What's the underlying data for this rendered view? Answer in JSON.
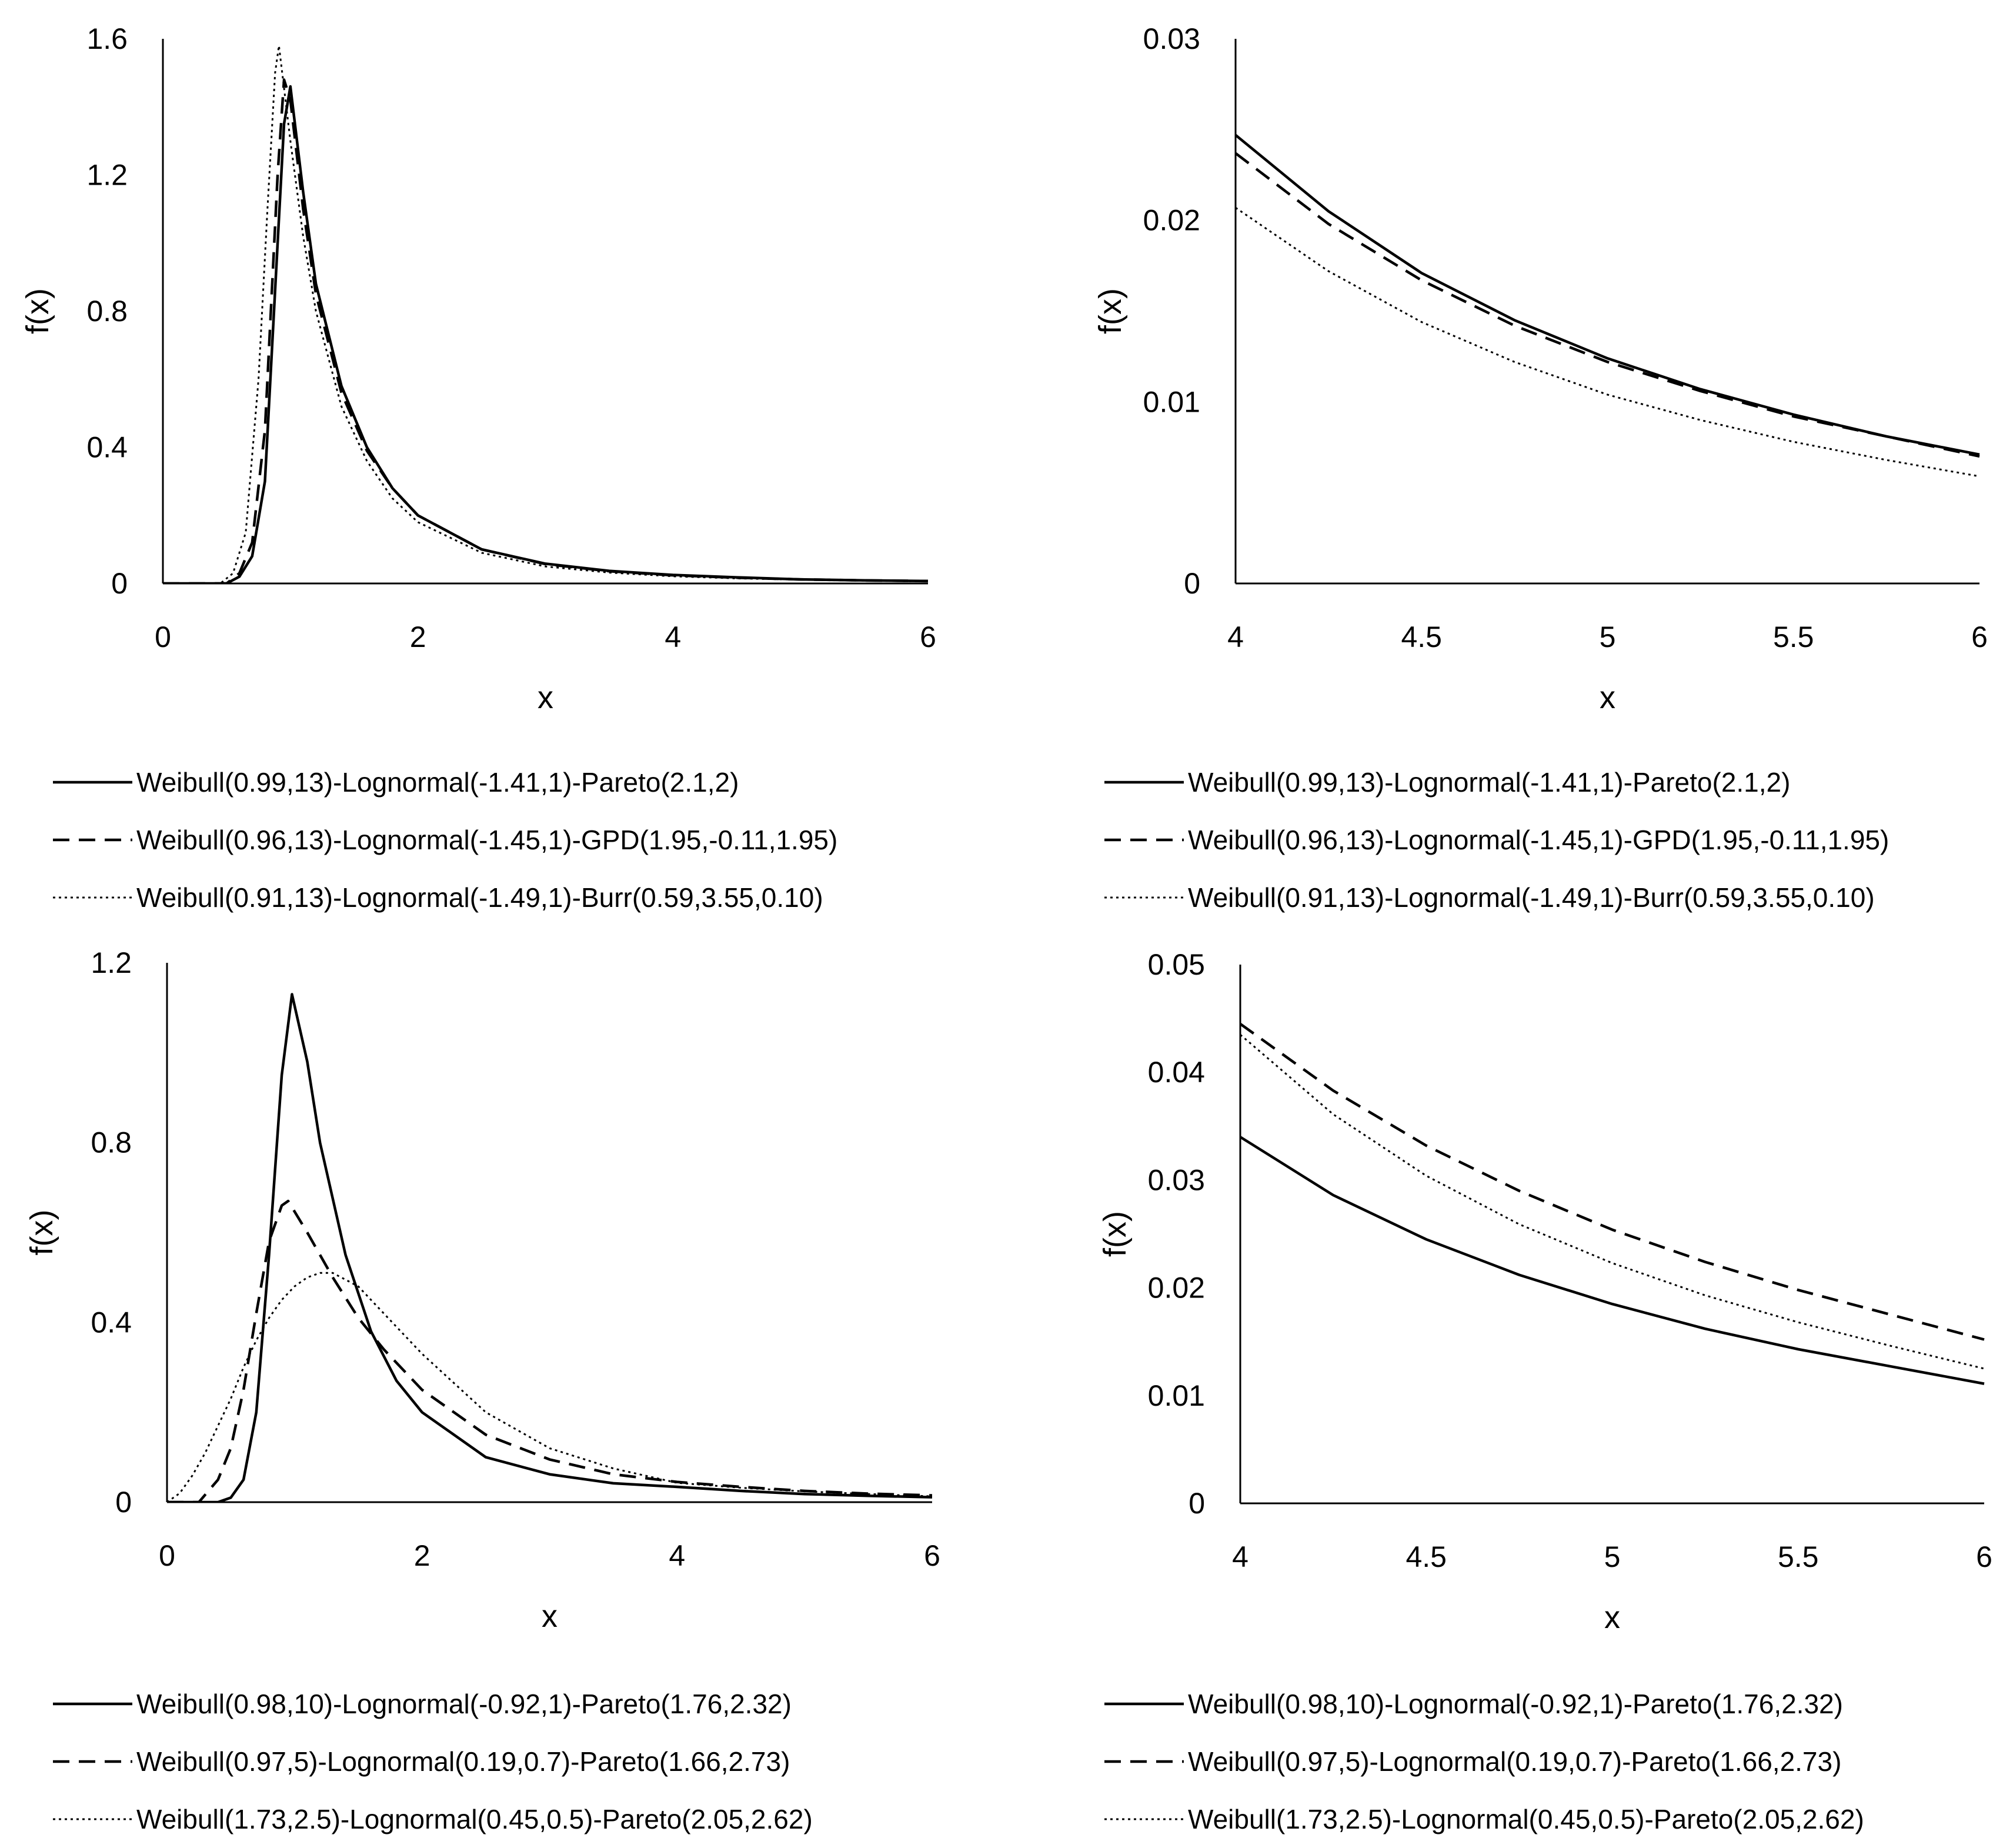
{
  "chart_data": [
    {
      "type": "line",
      "panel": "top-left",
      "xlabel": "x",
      "ylabel": "f(x)",
      "xlim": [
        0,
        6
      ],
      "ylim": [
        0,
        1.6
      ],
      "xticks": [
        "0",
        "2",
        "4",
        "6"
      ],
      "yticks": [
        "0",
        "0.4",
        "0.8",
        "1.2",
        "1.6"
      ],
      "grid": false,
      "legend_position": "bottom",
      "series": [
        {
          "name": "Weibull(0.99,13)-Lognormal(-1.41,1)-Pareto(2.1,2)",
          "style": "solid",
          "x": [
            0,
            0.5,
            0.6,
            0.7,
            0.8,
            0.9,
            0.95,
            1.0,
            1.1,
            1.2,
            1.4,
            1.6,
            1.8,
            2.0,
            2.5,
            3.0,
            3.5,
            4.0,
            4.5,
            5.0,
            5.5,
            6.0
          ],
          "y": [
            0,
            0,
            0.02,
            0.08,
            0.3,
            1.0,
            1.35,
            1.46,
            1.15,
            0.88,
            0.58,
            0.4,
            0.28,
            0.2,
            0.1,
            0.058,
            0.037,
            0.025,
            0.018,
            0.012,
            0.009,
            0.007
          ]
        },
        {
          "name": "Weibull(0.96,13)-Lognormal(-1.45,1)-GPD(1.95,-0.11,1.95)",
          "style": "dashed",
          "x": [
            0,
            0.5,
            0.6,
            0.7,
            0.8,
            0.9,
            0.95,
            1.0,
            1.1,
            1.2,
            1.4,
            1.6,
            1.8,
            2.0,
            2.5,
            3.0,
            3.5,
            4.0,
            4.5,
            5.0,
            5.5,
            6.0
          ],
          "y": [
            0,
            0,
            0.03,
            0.12,
            0.45,
            1.2,
            1.48,
            1.42,
            1.1,
            0.85,
            0.56,
            0.39,
            0.28,
            0.2,
            0.1,
            0.057,
            0.036,
            0.024,
            0.017,
            0.012,
            0.009,
            0.007
          ]
        },
        {
          "name": "Weibull(0.91,13)-Lognormal(-1.49,1)-Burr(0.59,3.55,0.10)",
          "style": "dotted",
          "x": [
            0,
            0.45,
            0.55,
            0.65,
            0.75,
            0.82,
            0.88,
            0.91,
            1.0,
            1.1,
            1.2,
            1.4,
            1.6,
            1.8,
            2.0,
            2.5,
            3.0,
            3.5,
            4.0,
            4.5,
            5.0,
            5.5,
            6.0
          ],
          "y": [
            0,
            0,
            0.03,
            0.15,
            0.6,
            1.1,
            1.5,
            1.58,
            1.3,
            1.02,
            0.8,
            0.52,
            0.36,
            0.25,
            0.18,
            0.09,
            0.05,
            0.032,
            0.021,
            0.015,
            0.011,
            0.008,
            0.006
          ]
        }
      ]
    },
    {
      "type": "line",
      "panel": "top-right",
      "xlabel": "x",
      "ylabel": "f(x)",
      "xlim": [
        4,
        6
      ],
      "ylim": [
        0,
        0.03
      ],
      "xticks": [
        "4",
        "4.5",
        "5",
        "5.5",
        "6"
      ],
      "yticks": [
        "0",
        "0.01",
        "0.02",
        "0.03"
      ],
      "grid": false,
      "legend_position": "bottom",
      "series": [
        {
          "name": "Weibull(0.99,13)-Lognormal(-1.41,1)-Pareto(2.1,2)",
          "style": "solid",
          "x": [
            4,
            4.25,
            4.5,
            4.75,
            5,
            5.25,
            5.5,
            5.75,
            6
          ],
          "y": [
            0.0247,
            0.0205,
            0.0171,
            0.0145,
            0.0124,
            0.0107,
            0.0093,
            0.0081,
            0.0071
          ]
        },
        {
          "name": "Weibull(0.96,13)-Lognormal(-1.45,1)-GPD(1.95,-0.11,1.95)",
          "style": "dashed",
          "x": [
            4,
            4.25,
            4.5,
            4.75,
            5,
            5.25,
            5.5,
            5.75,
            6
          ],
          "y": [
            0.0237,
            0.0198,
            0.0167,
            0.0142,
            0.0122,
            0.0106,
            0.0092,
            0.0081,
            0.007
          ]
        },
        {
          "name": "Weibull(0.91,13)-Lognormal(-1.49,1)-Burr(0.59,3.55,0.10)",
          "style": "dotted",
          "x": [
            4,
            4.25,
            4.5,
            4.75,
            5,
            5.25,
            5.5,
            5.75,
            6
          ],
          "y": [
            0.0207,
            0.0172,
            0.0144,
            0.0122,
            0.0104,
            0.009,
            0.0078,
            0.0068,
            0.0059
          ]
        }
      ]
    },
    {
      "type": "line",
      "panel": "bottom-left",
      "xlabel": "x",
      "ylabel": "f(x)",
      "xlim": [
        0,
        6
      ],
      "ylim": [
        0,
        1.2
      ],
      "xticks": [
        "0",
        "2",
        "4",
        "6"
      ],
      "yticks": [
        "0",
        "0.4",
        "0.8",
        "1.2"
      ],
      "grid": false,
      "legend_position": "bottom",
      "series": [
        {
          "name": "Weibull(0.98,10)-Lognormal(-0.92,1)-Pareto(1.76,2.32)",
          "style": "solid",
          "x": [
            0,
            0.4,
            0.5,
            0.6,
            0.7,
            0.8,
            0.9,
            0.98,
            1.1,
            1.2,
            1.4,
            1.6,
            1.8,
            2.0,
            2.5,
            3.0,
            3.5,
            4.0,
            4.5,
            5.0,
            5.5,
            6.0
          ],
          "y": [
            0,
            0,
            0.01,
            0.05,
            0.2,
            0.55,
            0.95,
            1.13,
            0.98,
            0.8,
            0.55,
            0.38,
            0.27,
            0.2,
            0.1,
            0.062,
            0.042,
            0.034,
            0.025,
            0.018,
            0.014,
            0.011
          ]
        },
        {
          "name": "Weibull(0.97,5)-Lognormal(0.19,0.7)-Pareto(1.66,2.73)",
          "style": "dashed",
          "x": [
            0,
            0.25,
            0.4,
            0.5,
            0.6,
            0.7,
            0.8,
            0.9,
            0.95,
            1.1,
            1.3,
            1.5,
            1.7,
            2.0,
            2.5,
            3.0,
            3.5,
            4.0,
            4.5,
            5.0,
            5.5,
            6.0
          ],
          "y": [
            0,
            0,
            0.05,
            0.12,
            0.25,
            0.42,
            0.58,
            0.66,
            0.67,
            0.6,
            0.5,
            0.41,
            0.34,
            0.25,
            0.15,
            0.095,
            0.062,
            0.045,
            0.034,
            0.025,
            0.019,
            0.015
          ]
        },
        {
          "name": "Weibull(1.73,2.5)-Lognormal(0.45,0.5)-Pareto(2.05,2.62)",
          "style": "dotted",
          "x": [
            0,
            0.1,
            0.2,
            0.3,
            0.4,
            0.5,
            0.6,
            0.7,
            0.8,
            0.9,
            1.0,
            1.1,
            1.2,
            1.3,
            1.5,
            1.7,
            2.0,
            2.5,
            3.0,
            3.5,
            4.0,
            4.5,
            5.0,
            5.5,
            6.0
          ],
          "y": [
            0,
            0.02,
            0.06,
            0.11,
            0.17,
            0.23,
            0.3,
            0.36,
            0.41,
            0.45,
            0.48,
            0.5,
            0.51,
            0.51,
            0.48,
            0.42,
            0.33,
            0.2,
            0.12,
            0.075,
            0.043,
            0.032,
            0.024,
            0.018,
            0.013
          ]
        }
      ]
    },
    {
      "type": "line",
      "panel": "bottom-right",
      "xlabel": "x",
      "ylabel": "f(x)",
      "xlim": [
        4,
        6
      ],
      "ylim": [
        0,
        0.05
      ],
      "xticks": [
        "4",
        "4.5",
        "5",
        "5.5",
        "6"
      ],
      "yticks": [
        "0",
        "0.01",
        "0.02",
        "0.03",
        "0.04",
        "0.05"
      ],
      "grid": false,
      "legend_position": "bottom",
      "series": [
        {
          "name": "Weibull(0.98,10)-Lognormal(-0.92,1)-Pareto(1.76,2.32)",
          "style": "solid",
          "x": [
            4,
            4.25,
            4.5,
            4.75,
            5,
            5.25,
            5.5,
            5.75,
            6
          ],
          "y": [
            0.034,
            0.0286,
            0.0245,
            0.0212,
            0.0185,
            0.0162,
            0.0143,
            0.0127,
            0.0111
          ]
        },
        {
          "name": "Weibull(0.97,5)-Lognormal(0.19,0.7)-Pareto(1.66,2.73)",
          "style": "dashed",
          "x": [
            4,
            4.25,
            4.5,
            4.75,
            5,
            5.25,
            5.5,
            5.75,
            6
          ],
          "y": [
            0.0445,
            0.0383,
            0.0332,
            0.029,
            0.0254,
            0.0224,
            0.0198,
            0.0175,
            0.0152
          ]
        },
        {
          "name": "Weibull(1.73,2.5)-Lognormal(0.45,0.5)-Pareto(2.05,2.62)",
          "style": "dotted",
          "x": [
            4,
            4.25,
            4.5,
            4.75,
            5,
            5.25,
            5.5,
            5.75,
            6
          ],
          "y": [
            0.0435,
            0.0361,
            0.0304,
            0.0259,
            0.0223,
            0.0193,
            0.0168,
            0.0146,
            0.0125
          ]
        }
      ]
    }
  ]
}
